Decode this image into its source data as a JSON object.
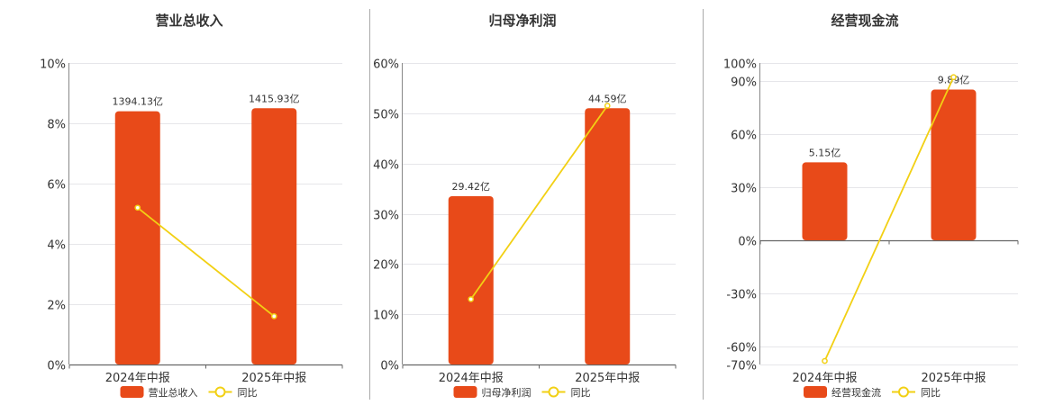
{
  "colors": {
    "bar": "#E84A19",
    "line": "#F2D014",
    "grid": "#E6E6EA",
    "axis": "#888888",
    "divider": "#AAAAAA"
  },
  "chart_data": [
    {
      "type": "bar",
      "title": "营业总收入",
      "categories": [
        "2024年中报",
        "2025年中报"
      ],
      "bar_values_pct": [
        8.4,
        8.5
      ],
      "bar_labels": [
        "1394.13亿",
        "1415.93亿"
      ],
      "line_values_pct": [
        5.2,
        1.6
      ],
      "ylim": [
        0,
        10
      ],
      "yticks": [
        0,
        2,
        4,
        6,
        8,
        10
      ],
      "ytick_labels": [
        "0%",
        "2%",
        "4%",
        "6%",
        "8%",
        "10%"
      ],
      "legend": [
        "营业总收入",
        "同比"
      ]
    },
    {
      "type": "bar",
      "title": "归母净利润",
      "categories": [
        "2024年中报",
        "2025年中报"
      ],
      "bar_values_pct": [
        33.5,
        51
      ],
      "bar_labels": [
        "29.42亿",
        "44.59亿"
      ],
      "line_values_pct": [
        13,
        51.5
      ],
      "ylim": [
        0,
        60
      ],
      "yticks": [
        0,
        10,
        20,
        30,
        40,
        50,
        60
      ],
      "ytick_labels": [
        "0%",
        "10%",
        "20%",
        "30%",
        "40%",
        "50%",
        "60%"
      ],
      "legend": [
        "归母净利润",
        "同比"
      ]
    },
    {
      "type": "bar",
      "title": "经营现金流",
      "categories": [
        "2024年中报",
        "2025年中报"
      ],
      "bar_values_pct": [
        44,
        85
      ],
      "bar_labels": [
        "5.15亿",
        "9.89亿"
      ],
      "line_values_pct": [
        -68,
        92
      ],
      "ylim": [
        -70,
        100
      ],
      "yticks": [
        -70,
        -60,
        -30,
        0,
        30,
        60,
        90,
        100
      ],
      "ytick_labels": [
        "-70%",
        "-60%",
        "-30%",
        "0%",
        "30%",
        "60%",
        "90%",
        "100%"
      ],
      "legend": [
        "经营现金流",
        "同比"
      ]
    }
  ]
}
